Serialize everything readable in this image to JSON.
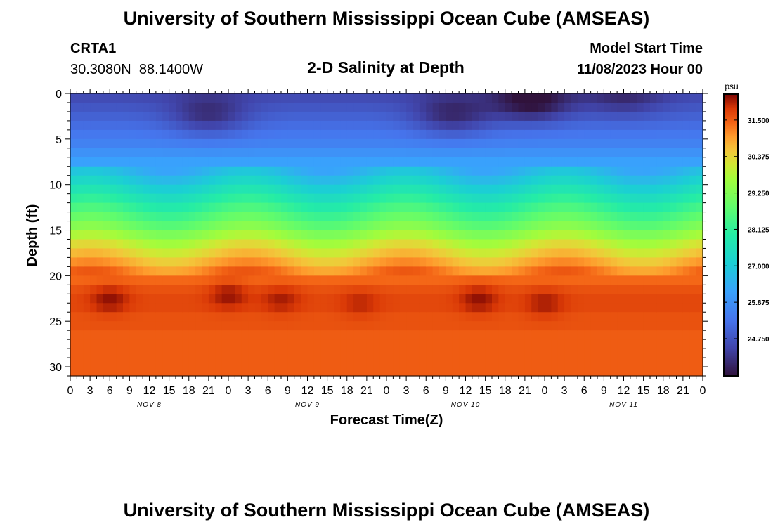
{
  "header": {
    "title": "University of Southern Mississippi Ocean Cube (AMSEAS)",
    "station_name": "CRTA1",
    "station_coords": "30.3080N  88.1400W",
    "chart_subtitle": "2-D Salinity at Depth",
    "model_start_label": "Model Start Time",
    "model_start_value": "11/08/2023 Hour 00"
  },
  "footer": {
    "title": "University of Southern Mississippi Ocean Cube (AMSEAS)"
  },
  "chart_data": {
    "type": "heatmap",
    "title": "2-D Salinity at Depth",
    "xlabel": "Forecast Time(Z)",
    "ylabel": "Depth (ft)",
    "x_hours_range": [
      0,
      96
    ],
    "x_tick_step_hours": 3,
    "x_tick_labels": [
      "0",
      "3",
      "6",
      "9",
      "12",
      "15",
      "18",
      "21",
      "0",
      "3",
      "6",
      "9",
      "12",
      "15",
      "18",
      "21",
      "0",
      "3",
      "6",
      "9",
      "12",
      "15",
      "18",
      "21",
      "0",
      "3",
      "6",
      "9",
      "12",
      "15",
      "18",
      "21",
      "0"
    ],
    "day_labels": [
      {
        "label": "NOV 8",
        "hour": 12
      },
      {
        "label": "NOV 9",
        "hour": 36
      },
      {
        "label": "NOV 10",
        "hour": 60
      },
      {
        "label": "NOV 11",
        "hour": 84
      }
    ],
    "y_range": [
      0,
      31
    ],
    "y_ticks": [
      0,
      5,
      10,
      15,
      20,
      25,
      30
    ],
    "y_tick_labels": [
      "0",
      "5",
      "10",
      "15",
      "20",
      "25",
      "30"
    ],
    "colorbar": {
      "units": "psu",
      "range": [
        23.6,
        32.3
      ],
      "ticks": [
        31.5,
        30.375,
        29.25,
        28.125,
        27.0,
        25.875,
        24.75
      ],
      "tick_labels": [
        "31.500",
        "30.375",
        "29.250",
        "28.125",
        "27.000",
        "25.875",
        "24.750"
      ]
    },
    "depths": [
      0.5,
      1.5,
      2.5,
      3.5,
      4.5,
      5.5,
      6.5,
      7.5,
      8.5,
      9.5,
      10.5,
      11.5,
      12.5,
      13.5,
      14.5,
      15.5,
      16.5,
      17.5,
      18.5,
      19.5,
      20.5,
      21.5,
      22.5,
      23.5,
      24.5,
      25.5,
      26.5,
      27.5,
      28.5,
      29.5,
      30.5
    ],
    "salinity_profile": [
      24.6,
      24.8,
      25.0,
      25.2,
      25.4,
      25.6,
      25.9,
      26.2,
      26.6,
      27.0,
      27.4,
      27.8,
      28.2,
      28.6,
      29.0,
      29.5,
      30.0,
      30.4,
      30.8,
      31.2,
      31.4,
      31.6,
      31.7,
      31.7,
      31.6,
      31.6,
      31.5,
      31.5,
      31.5,
      31.5,
      31.5
    ],
    "fresh_plumes": [
      {
        "hour": 21,
        "depth": 2.5,
        "delta": -0.9
      },
      {
        "hour": 58,
        "depth": 2.5,
        "delta": -1.0
      },
      {
        "hour": 70,
        "depth": 1.0,
        "delta": -1.2
      },
      {
        "hour": 84,
        "depth": 0.5,
        "delta": -0.6
      }
    ],
    "salty_cores": [
      {
        "hour": 6,
        "depth": 22.5,
        "delta": 0.5
      },
      {
        "hour": 24,
        "depth": 22.0,
        "delta": 0.5
      },
      {
        "hour": 32,
        "depth": 22.5,
        "delta": 0.4
      },
      {
        "hour": 44,
        "depth": 23.0,
        "delta": 0.3
      },
      {
        "hour": 62,
        "depth": 22.5,
        "delta": 0.5
      },
      {
        "hour": 72,
        "depth": 23.0,
        "delta": 0.4
      }
    ]
  }
}
